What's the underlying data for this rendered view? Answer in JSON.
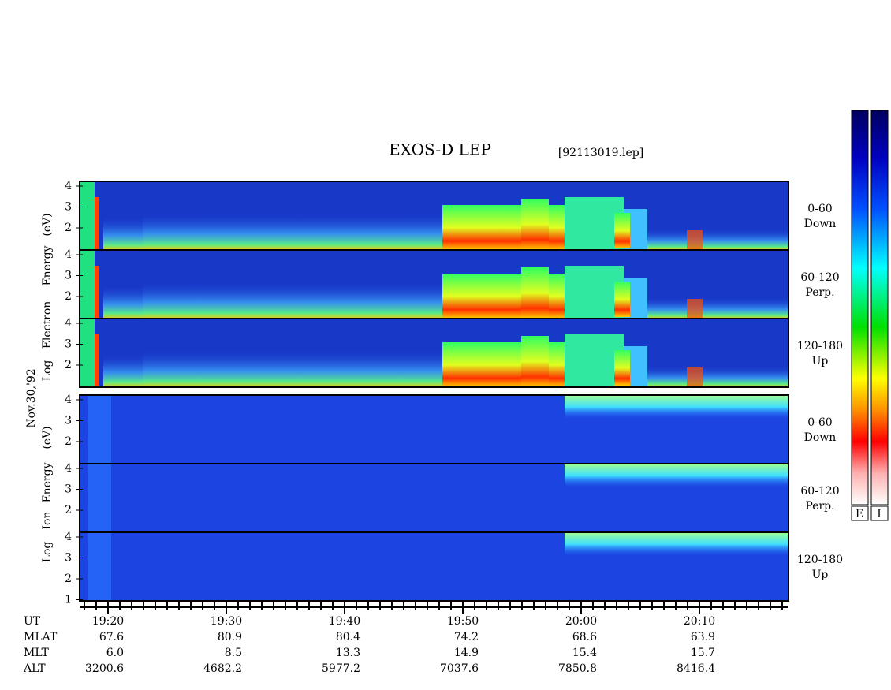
{
  "header": {
    "title": "EXOS-D LEP",
    "file": "[92113019.lep]"
  },
  "date": "Nov.30,'92",
  "electron_axis": [
    "Log",
    "Electron",
    "Energy",
    "(eV)"
  ],
  "ion_axis": [
    "Log",
    "Ion",
    "Energy",
    "(eV)"
  ],
  "panels": [
    {
      "label": [
        "0-60",
        "Down"
      ],
      "yticks": [
        2,
        3,
        4
      ]
    },
    {
      "label": [
        "60-120",
        "Perp."
      ],
      "yticks": [
        2,
        3,
        4
      ]
    },
    {
      "label": [
        "120-180",
        "Up"
      ],
      "yticks": [
        2,
        3,
        4
      ]
    },
    {
      "label": [
        "0-60",
        "Down"
      ],
      "yticks": [
        2,
        3,
        4
      ]
    },
    {
      "label": [
        "60-120",
        "Perp."
      ],
      "yticks": [
        2,
        3,
        4
      ]
    },
    {
      "label": [
        "120-180",
        "Up"
      ],
      "yticks": [
        1,
        2,
        3,
        4
      ]
    }
  ],
  "table": {
    "row_labels": [
      "UT",
      "MLAT",
      "MLT",
      "ALT"
    ],
    "columns": [
      [
        "19:20",
        "67.6",
        "6.0",
        "3200.6"
      ],
      [
        "19:30",
        "80.9",
        "8.5",
        "4682.2"
      ],
      [
        "19:40",
        "80.4",
        "13.3",
        "5977.2"
      ],
      [
        "19:50",
        "74.2",
        "14.9",
        "7037.6"
      ],
      [
        "20:00",
        "68.6",
        "15.4",
        "7850.8"
      ],
      [
        "20:10",
        "63.9",
        "15.7",
        "8416.4"
      ]
    ]
  },
  "colorbar_labels": [
    "E",
    "I"
  ]
}
